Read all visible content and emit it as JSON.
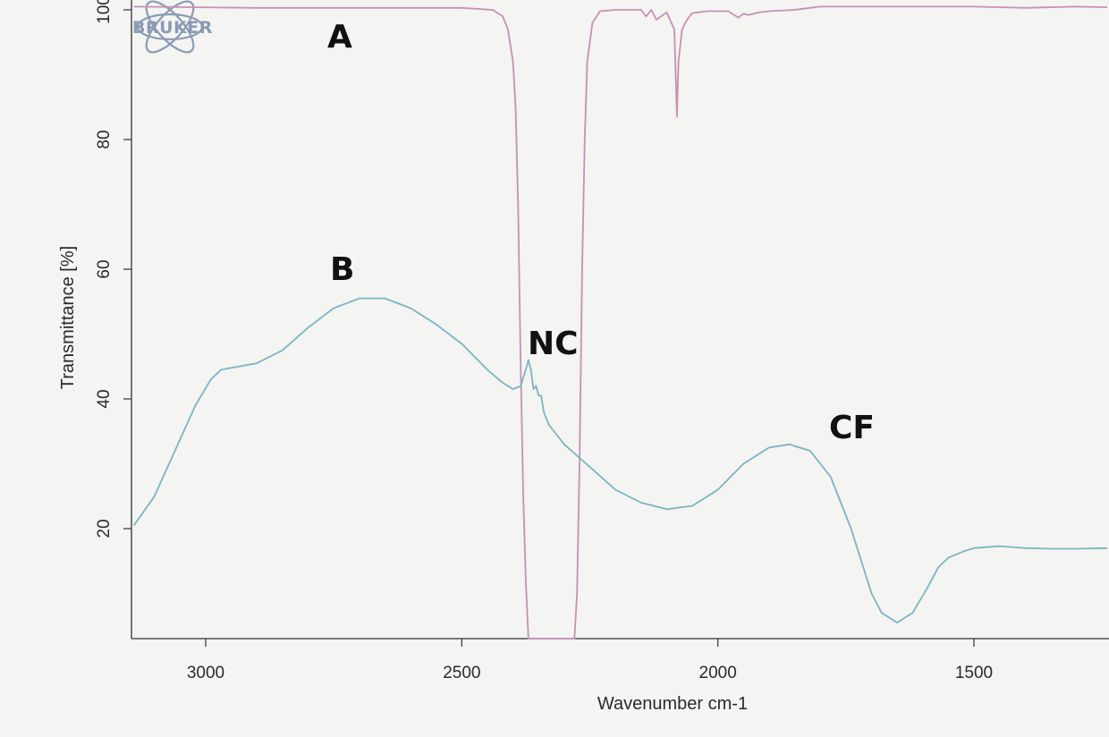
{
  "brand": {
    "logo_text": "BRUKER",
    "logo_color": "#8a9bb4"
  },
  "chart_data": {
    "type": "line",
    "xlabel": "Wavenumber cm-1",
    "ylabel": "Transmittance [%]",
    "xlim": [
      3140,
      1240
    ],
    "ylim": [
      3,
      101
    ],
    "x_ticks": [
      3000,
      2500,
      2000,
      1500
    ],
    "y_ticks": [
      20,
      40,
      60,
      80,
      100
    ],
    "x_tick_labels": [
      "3000",
      "2500",
      "2000",
      "1500"
    ],
    "y_tick_labels": [
      "20",
      "40",
      "60",
      "80",
      "100"
    ],
    "grid": false,
    "series": [
      {
        "name": "A",
        "color": "#c790b5",
        "x": [
          3140,
          2900,
          2700,
          2500,
          2440,
          2420,
          2410,
          2400,
          2395,
          2390,
          2385,
          2380,
          2375,
          2370,
          2365,
          2360,
          2355,
          2350,
          2340,
          2320,
          2300,
          2290,
          2280,
          2275,
          2270,
          2265,
          2260,
          2255,
          2245,
          2230,
          2200,
          2150,
          2140,
          2130,
          2120,
          2100,
          2085,
          2080,
          2077,
          2074,
          2070,
          2060,
          2050,
          2020,
          1980,
          1960,
          1950,
          1940,
          1920,
          1900,
          1850,
          1800,
          1700,
          1600,
          1500,
          1400,
          1300,
          1240
        ],
        "values": [
          100.5,
          100.3,
          100.3,
          100.3,
          100.0,
          99.0,
          97.0,
          92.0,
          85.0,
          70.0,
          45.0,
          25.0,
          12.0,
          3.0,
          3.0,
          3.0,
          3.0,
          3.0,
          3.0,
          3.0,
          3.0,
          3.0,
          3.0,
          10.0,
          30.0,
          60.0,
          80.0,
          92.0,
          98.0,
          99.8,
          100.0,
          100.0,
          99.0,
          100.0,
          98.5,
          99.6,
          97.0,
          83.5,
          92.0,
          94.0,
          97.0,
          98.5,
          99.5,
          99.8,
          99.8,
          98.8,
          99.4,
          99.2,
          99.6,
          99.8,
          100.0,
          100.5,
          100.5,
          100.5,
          100.5,
          100.3,
          100.5,
          100.4
        ]
      },
      {
        "name": "B",
        "color": "#7ab5c3",
        "x": [
          3140,
          3100,
          3060,
          3020,
          2990,
          2970,
          2950,
          2900,
          2850,
          2800,
          2750,
          2700,
          2650,
          2600,
          2550,
          2500,
          2450,
          2420,
          2400,
          2385,
          2375,
          2370,
          2365,
          2360,
          2355,
          2350,
          2345,
          2340,
          2335,
          2330,
          2300,
          2250,
          2200,
          2150,
          2100,
          2050,
          2000,
          1950,
          1900,
          1860,
          1820,
          1780,
          1740,
          1700,
          1680,
          1650,
          1620,
          1590,
          1570,
          1550,
          1520,
          1500,
          1450,
          1400,
          1350,
          1300,
          1240
        ],
        "values": [
          20.5,
          25.0,
          32.0,
          39.0,
          43.0,
          44.5,
          44.8,
          45.5,
          47.5,
          51.0,
          54.0,
          55.5,
          55.5,
          54.0,
          51.5,
          48.5,
          44.5,
          42.5,
          41.5,
          42.0,
          44.5,
          46.0,
          44.5,
          41.5,
          42.0,
          40.5,
          40.5,
          38.0,
          37.0,
          36.0,
          33.0,
          29.5,
          26.0,
          24.0,
          23.0,
          23.5,
          26.0,
          30.0,
          32.5,
          33.0,
          32.0,
          28.0,
          20.0,
          10.0,
          7.0,
          5.5,
          7.0,
          11.0,
          14.0,
          15.5,
          16.5,
          17.0,
          17.3,
          17.0,
          16.9,
          16.9,
          17.0
        ]
      }
    ],
    "annotations": [
      "A",
      "B",
      "NC",
      "CF"
    ]
  }
}
